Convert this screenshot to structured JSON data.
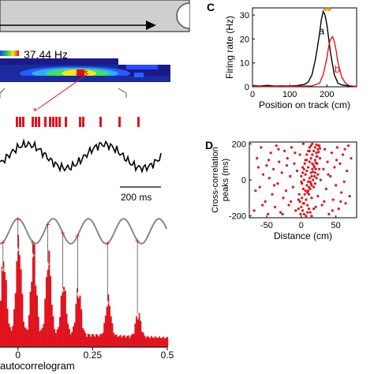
{
  "panel_labels": {
    "c": "C",
    "d": "D"
  },
  "heatmap": {
    "max_rate_label": "37.44 Hz"
  },
  "trace": {
    "scalebar_label": "200 ms",
    "spike_marker": "*"
  },
  "autocorr": {
    "xlabel_partial": "autocorrelogram"
  },
  "colors": {
    "red": "#e0141e",
    "gray": "#888888",
    "track": "#cfcfcf"
  },
  "chart_data": [
    {
      "type": "line",
      "panel": "C",
      "xlabel": "Position on track (cm)",
      "ylabel": "Firing rate (Hz)",
      "xlim": [
        0,
        280
      ],
      "ylim": [
        0,
        33
      ],
      "xticks": [
        0,
        100,
        200
      ],
      "yticks": [
        0,
        10,
        20,
        30
      ],
      "series": [
        {
          "name": "a",
          "color": "#000000",
          "x": [
            0,
            20,
            40,
            60,
            80,
            100,
            120,
            140,
            150,
            160,
            170,
            180,
            185,
            190,
            195,
            200,
            210,
            220,
            230,
            240,
            260,
            280
          ],
          "y": [
            0.5,
            0.3,
            0.6,
            0.3,
            0.4,
            0.3,
            0.5,
            1.0,
            2.0,
            5.0,
            12.0,
            22.0,
            28.0,
            31.5,
            30.0,
            26.0,
            14.0,
            5.0,
            1.5,
            0.8,
            0.3,
            0.2
          ]
        },
        {
          "name": "b",
          "color": "#e0141e",
          "x": [
            0,
            40,
            80,
            120,
            160,
            180,
            190,
            200,
            205,
            210,
            215,
            220,
            225,
            230,
            240,
            250,
            260,
            280
          ],
          "y": [
            0.2,
            0.1,
            0.2,
            0.2,
            0.4,
            1.5,
            5.0,
            12.0,
            17.0,
            20.0,
            21.0,
            19.0,
            15.0,
            10.0,
            4.0,
            1.5,
            0.5,
            0.1
          ]
        }
      ],
      "annotation": {
        "type": "double-arrow",
        "color": "#e8a000",
        "x_from": 190,
        "x_to": 212,
        "y": 33
      }
    },
    {
      "type": "scatter",
      "panel": "D",
      "xlabel": "Distance (cm)",
      "ylabel": "Cross-correlation peaks (ms)",
      "ylabel_lines": [
        "Cross-correlation",
        "peaks (ms)"
      ],
      "xlim": [
        -75,
        80
      ],
      "ylim": [
        -210,
        210
      ],
      "xticks": [
        -50,
        0,
        50
      ],
      "yticks": [
        -200,
        0,
        200
      ],
      "color": "#e0141e",
      "points_note": "dense cloud of points, concentrated along a band near x 0-25",
      "points": [
        [
          -68,
          -170
        ],
        [
          -64,
          120
        ],
        [
          -60,
          -40
        ],
        [
          -58,
          180
        ],
        [
          -55,
          30
        ],
        [
          -52,
          -120
        ],
        [
          -50,
          80
        ],
        [
          -48,
          -190
        ],
        [
          -46,
          10
        ],
        [
          -44,
          150
        ],
        [
          -42,
          -80
        ],
        [
          -40,
          60
        ],
        [
          -38,
          -150
        ],
        [
          -36,
          190
        ],
        [
          -34,
          -20
        ],
        [
          -32,
          100
        ],
        [
          -30,
          -180
        ],
        [
          -28,
          40
        ],
        [
          -26,
          -100
        ],
        [
          -24,
          160
        ],
        [
          -22,
          -60
        ],
        [
          -20,
          120
        ],
        [
          -18,
          -140
        ],
        [
          -16,
          20
        ],
        [
          -14,
          180
        ],
        [
          -12,
          -40
        ],
        [
          -10,
          90
        ],
        [
          -8,
          -170
        ],
        [
          -6,
          50
        ],
        [
          -4,
          -110
        ],
        [
          -2,
          140
        ],
        [
          0,
          -10
        ],
        [
          2,
          70
        ],
        [
          4,
          -130
        ],
        [
          6,
          30
        ],
        [
          8,
          110
        ],
        [
          10,
          -60
        ],
        [
          12,
          160
        ],
        [
          14,
          -20
        ],
        [
          16,
          90
        ],
        [
          18,
          -160
        ],
        [
          20,
          40
        ],
        [
          22,
          130
        ],
        [
          24,
          -90
        ],
        [
          26,
          190
        ],
        [
          28,
          0
        ],
        [
          30,
          -140
        ],
        [
          32,
          60
        ],
        [
          34,
          170
        ],
        [
          36,
          -50
        ],
        [
          38,
          100
        ],
        [
          40,
          -190
        ],
        [
          42,
          20
        ],
        [
          44,
          150
        ],
        [
          46,
          -110
        ],
        [
          48,
          70
        ],
        [
          50,
          -30
        ],
        [
          52,
          180
        ],
        [
          54,
          -160
        ],
        [
          56,
          90
        ],
        [
          58,
          -70
        ],
        [
          60,
          140
        ],
        [
          62,
          -10
        ],
        [
          64,
          -130
        ],
        [
          66,
          50
        ],
        [
          68,
          190
        ],
        [
          70,
          -90
        ],
        [
          72,
          120
        ],
        [
          -66,
          -60
        ],
        [
          -62,
          70
        ],
        [
          -56,
          -140
        ],
        [
          -47,
          110
        ],
        [
          -39,
          -30
        ],
        [
          -33,
          170
        ],
        [
          -27,
          -190
        ],
        [
          -21,
          80
        ],
        [
          -15,
          -120
        ],
        [
          -9,
          150
        ],
        [
          -3,
          -80
        ],
        [
          3,
          200
        ],
        [
          9,
          -180
        ],
        [
          15,
          -100
        ],
        [
          21,
          -150
        ],
        [
          27,
          120
        ],
        [
          33,
          -120
        ],
        [
          39,
          30
        ],
        [
          45,
          -170
        ],
        [
          51,
          110
        ],
        [
          57,
          -120
        ],
        [
          63,
          170
        ],
        [
          0,
          20
        ],
        [
          2,
          40
        ],
        [
          4,
          60
        ],
        [
          5,
          90
        ],
        [
          6,
          110
        ],
        [
          8,
          140
        ],
        [
          10,
          160
        ],
        [
          12,
          180
        ],
        [
          14,
          190
        ],
        [
          16,
          200
        ],
        [
          1,
          -20
        ],
        [
          3,
          -50
        ],
        [
          5,
          -80
        ],
        [
          7,
          -110
        ],
        [
          9,
          -140
        ],
        [
          11,
          -160
        ],
        [
          13,
          -180
        ],
        [
          15,
          -200
        ],
        [
          4,
          0
        ],
        [
          6,
          30
        ],
        [
          8,
          50
        ],
        [
          10,
          70
        ],
        [
          12,
          100
        ],
        [
          14,
          120
        ],
        [
          16,
          140
        ],
        [
          18,
          160
        ],
        [
          20,
          180
        ],
        [
          22,
          195
        ],
        [
          -2,
          -120
        ],
        [
          0,
          -150
        ],
        [
          2,
          -170
        ],
        [
          4,
          -190
        ],
        [
          6,
          -60
        ],
        [
          8,
          -30
        ],
        [
          10,
          -10
        ],
        [
          12,
          10
        ],
        [
          14,
          40
        ],
        [
          16,
          60
        ],
        [
          18,
          80
        ],
        [
          20,
          110
        ],
        [
          22,
          150
        ],
        [
          24,
          170
        ],
        [
          25,
          190
        ],
        [
          11,
          -80
        ],
        [
          13,
          -50
        ],
        [
          15,
          -30
        ],
        [
          17,
          0
        ],
        [
          19,
          20
        ],
        [
          21,
          60
        ],
        [
          23,
          90
        ],
        [
          -4,
          -160
        ],
        [
          -1,
          -190
        ],
        [
          1,
          -100
        ],
        [
          3,
          -130
        ],
        [
          7,
          -200
        ],
        [
          9,
          -70
        ],
        [
          11,
          -40
        ],
        [
          13,
          -10
        ],
        [
          15,
          20
        ],
        [
          17,
          45
        ],
        [
          19,
          70
        ],
        [
          21,
          95
        ],
        [
          23,
          130
        ],
        [
          25,
          155
        ],
        [
          27,
          175
        ],
        [
          18,
          -40
        ],
        [
          20,
          -20
        ],
        [
          22,
          10
        ],
        [
          24,
          30
        ],
        [
          26,
          60
        ]
      ]
    },
    {
      "type": "bar",
      "panel": "autocorrelogram",
      "xticks": [
        0,
        0.25,
        0.5
      ],
      "xtick_labels": [
        "0",
        "0.25",
        "0.5"
      ],
      "xlim": [
        -0.06,
        0.5
      ],
      "ylim": [
        0,
        1.0
      ],
      "bar_color": "#e0141e",
      "peak_x": [
        -0.05,
        0,
        0.05,
        0.1,
        0.15,
        0.2,
        0.3,
        0.4
      ],
      "peak_heights": [
        0.62,
        0.78,
        0.73,
        0.66,
        0.45,
        0.42,
        0.35,
        0.25
      ],
      "trough_height": 0.12,
      "fit_line": {
        "color": "#888888",
        "period": 0.118,
        "mean": 0.93,
        "amplitude": 0.1
      },
      "peak_markers": "+"
    }
  ]
}
